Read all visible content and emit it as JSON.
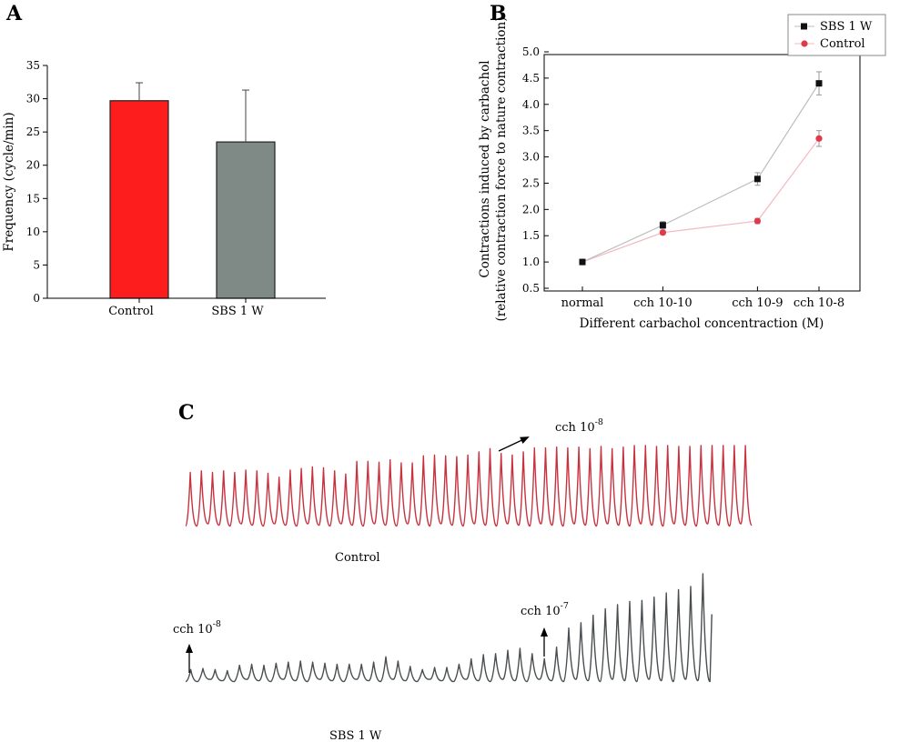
{
  "panels": {
    "a": {
      "letter": "A"
    },
    "b": {
      "letter": "B"
    },
    "c": {
      "letter": "C"
    }
  },
  "chart_data": [
    {
      "type": "bar",
      "panel": "A",
      "categories": [
        "Control",
        "SBS 1 W"
      ],
      "values": [
        29.7,
        23.5
      ],
      "errors": [
        2.7,
        7.8
      ],
      "colors": [
        "#fd1d1d",
        "#7f8a86"
      ],
      "ylabel": "Frequency (cycle/min)",
      "xlabel": "",
      "ylim": [
        0,
        35
      ],
      "yticks": [
        0,
        5,
        10,
        15,
        20,
        25,
        30,
        35
      ],
      "grid": false
    },
    {
      "type": "line",
      "panel": "B",
      "categories": [
        "normal",
        "cch 10-10",
        "cch 10-9",
        "cch 10-8"
      ],
      "x": [
        0,
        0.85,
        1.85,
        2.5
      ],
      "series": [
        {
          "name": "SBS 1 W",
          "values": [
            1.0,
            1.7,
            2.58,
            4.4
          ],
          "errors": [
            0.03,
            0.07,
            0.12,
            0.22
          ],
          "color": "#111111",
          "line_color": "#bdbdbd",
          "marker": "square"
        },
        {
          "name": "Control",
          "values": [
            1.0,
            1.56,
            1.78,
            3.35
          ],
          "errors": [
            0.03,
            0.04,
            0.05,
            0.15
          ],
          "color": "#e03a4a",
          "line_color": "#f3b9c2",
          "marker": "circle"
        }
      ],
      "ylabel_line1": "Contractions induced by carbachol",
      "ylabel_line2": "(relative contraction force to nature contraction)",
      "xlabel": "Different carbachol concentraction (M)",
      "ylim": [
        0.5,
        5.0
      ],
      "yticks": [
        "0.5",
        "1.0",
        "1.5",
        "2.0",
        "2.5",
        "3.0",
        "3.5",
        "4.0",
        "4.5",
        "5.0"
      ],
      "legend_position": "top-right",
      "grid": false
    }
  ],
  "traces": {
    "control": {
      "label": "Control",
      "annotation_base": "cch 10",
      "annotation_exp": "-8",
      "color": "#c8323f",
      "amplitude_levels": [
        0.66,
        0.68,
        0.66,
        0.68,
        0.66,
        0.69,
        0.68,
        0.65,
        0.6,
        0.69,
        0.71,
        0.73,
        0.72,
        0.68,
        0.64,
        0.8,
        0.8,
        0.79,
        0.82,
        0.78,
        0.78,
        0.87,
        0.88,
        0.87,
        0.86,
        0.88,
        0.92,
        0.96,
        0.9,
        0.88,
        0.92,
        0.97,
        0.97,
        0.98,
        0.97,
        0.98,
        0.96,
        0.99,
        0.96,
        0.98,
        1.0,
        1.0,
        0.99,
        1.0,
        0.99,
        0.99,
        1.0,
        1.0,
        1.0,
        1.0,
        1.0
      ]
    },
    "sbs": {
      "label": "SBS 1 W",
      "annotation_left_base": "cch 10",
      "annotation_left_exp": "-8",
      "annotation_right_base": "cch 10",
      "annotation_right_exp": "-7",
      "color": "#4a4e50",
      "amplitude_levels": [
        0.1,
        0.11,
        0.1,
        0.09,
        0.14,
        0.15,
        0.14,
        0.16,
        0.17,
        0.18,
        0.17,
        0.16,
        0.15,
        0.15,
        0.15,
        0.17,
        0.22,
        0.18,
        0.13,
        0.1,
        0.12,
        0.12,
        0.15,
        0.2,
        0.24,
        0.25,
        0.28,
        0.3,
        0.25,
        0.2,
        0.31,
        0.49,
        0.54,
        0.61,
        0.67,
        0.71,
        0.74,
        0.75,
        0.78,
        0.82,
        0.85,
        0.88,
        1.0
      ]
    }
  }
}
